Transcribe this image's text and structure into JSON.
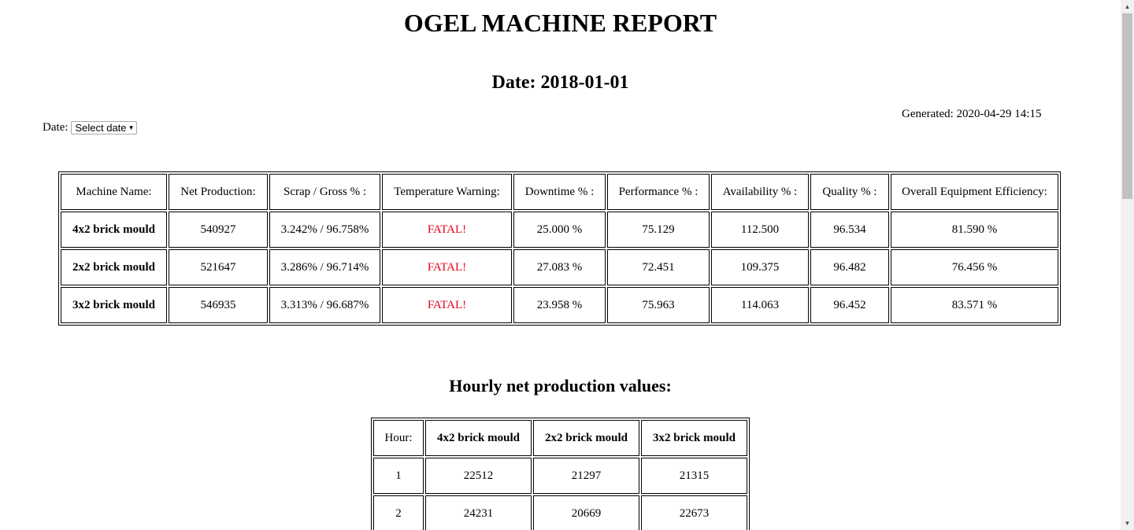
{
  "report": {
    "title": "OGEL MACHINE REPORT",
    "date_heading": "Date: 2018-01-01",
    "generated": "Generated: 2020-04-29 14:15"
  },
  "date_picker": {
    "label": "Date:",
    "selected": "Select date"
  },
  "machine_table": {
    "headers": [
      "Machine Name:",
      "Net Production:",
      "Scrap / Gross % :",
      "Temperature Warning:",
      "Downtime % :",
      "Performance % :",
      "Availability % :",
      "Quality % :",
      "Overall Equipment Efficiency:"
    ],
    "rows": [
      [
        "4x2 brick mould",
        "540927",
        "3.242% / 96.758%",
        "FATAL!",
        "25.000 %",
        "75.129",
        "112.500",
        "96.534",
        "81.590 %"
      ],
      [
        "2x2 brick mould",
        "521647",
        "3.286% / 96.714%",
        "FATAL!",
        "27.083 %",
        "72.451",
        "109.375",
        "96.482",
        "76.456 %"
      ],
      [
        "3x2 brick mould",
        "546935",
        "3.313% / 96.687%",
        "FATAL!",
        "23.958 %",
        "75.963",
        "114.063",
        "96.452",
        "83.571 %"
      ]
    ],
    "warning_color": "#e8001c"
  },
  "hourly": {
    "heading": "Hourly net production values:",
    "headers": [
      "Hour:",
      "4x2 brick mould",
      "2x2 brick mould",
      "3x2 brick mould"
    ],
    "rows": [
      [
        "1",
        "22512",
        "21297",
        "21315"
      ],
      [
        "2",
        "24231",
        "20669",
        "22673"
      ]
    ]
  },
  "icons": {
    "select_chevron": "chevron-down-icon",
    "scroll_up": "scroll-up-arrow-icon",
    "scroll_down": "scroll-down-arrow-icon"
  }
}
